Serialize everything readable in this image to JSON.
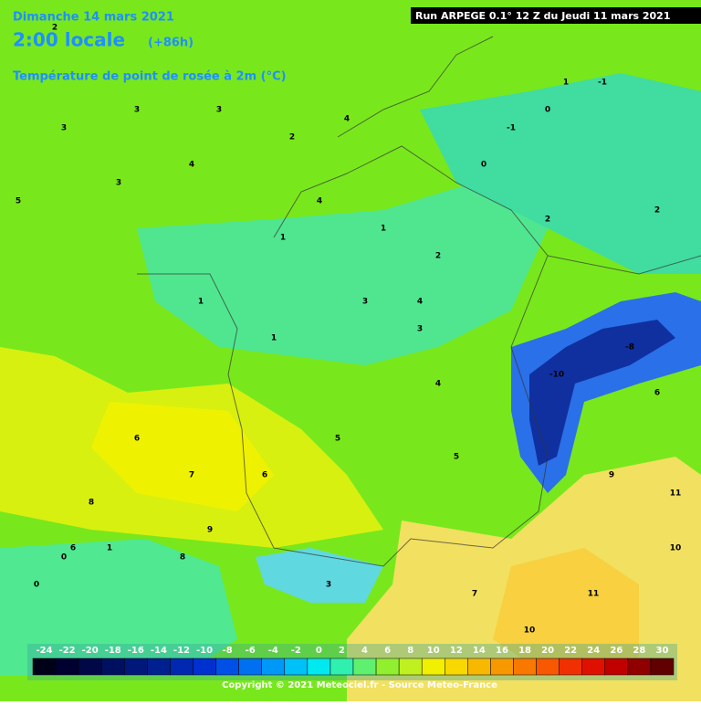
{
  "header": {
    "date": "Dimanche 14 mars 2021",
    "time": "2:00 locale",
    "lead": "(+86h)",
    "parameter": "Température de point de rosée à 2m (°C)",
    "run": "Run ARPEGE 0.1° 12 Z du Jeudi 11 mars 2021"
  },
  "legend": {
    "ticks": [
      -24,
      -22,
      -20,
      -18,
      -16,
      -14,
      -12,
      -10,
      -8,
      -6,
      -4,
      -2,
      0,
      2,
      4,
      6,
      8,
      10,
      12,
      14,
      16,
      18,
      20,
      22,
      24,
      26,
      28,
      30
    ],
    "colors": [
      "#000018",
      "#000030",
      "#000848",
      "#001060",
      "#00187a",
      "#002090",
      "#0028b0",
      "#0030d0",
      "#0050e8",
      "#0070f0",
      "#0098f8",
      "#00c0f8",
      "#00e8f0",
      "#30f0b0",
      "#60f070",
      "#90f030",
      "#c0f020",
      "#f0f000",
      "#f8d800",
      "#f8b800",
      "#f89800",
      "#f87800",
      "#f85800",
      "#f03000",
      "#e01000",
      "#c00000",
      "#900000",
      "#600000"
    ]
  },
  "map_labels": [
    2,
    3,
    3,
    4,
    3,
    2,
    3,
    4,
    5,
    4,
    1,
    1,
    1,
    2,
    3,
    3,
    1,
    0,
    -1,
    0,
    -1,
    1,
    2,
    2,
    4,
    5,
    6,
    7,
    6,
    8,
    9,
    8,
    6,
    1,
    0,
    3,
    10,
    11,
    10,
    7,
    11,
    9,
    6,
    0,
    -10,
    -8,
    4,
    5
  ],
  "footer": {
    "copyright": "Copyright © 2021 Meteociel.fr - Source Meteo-France"
  }
}
